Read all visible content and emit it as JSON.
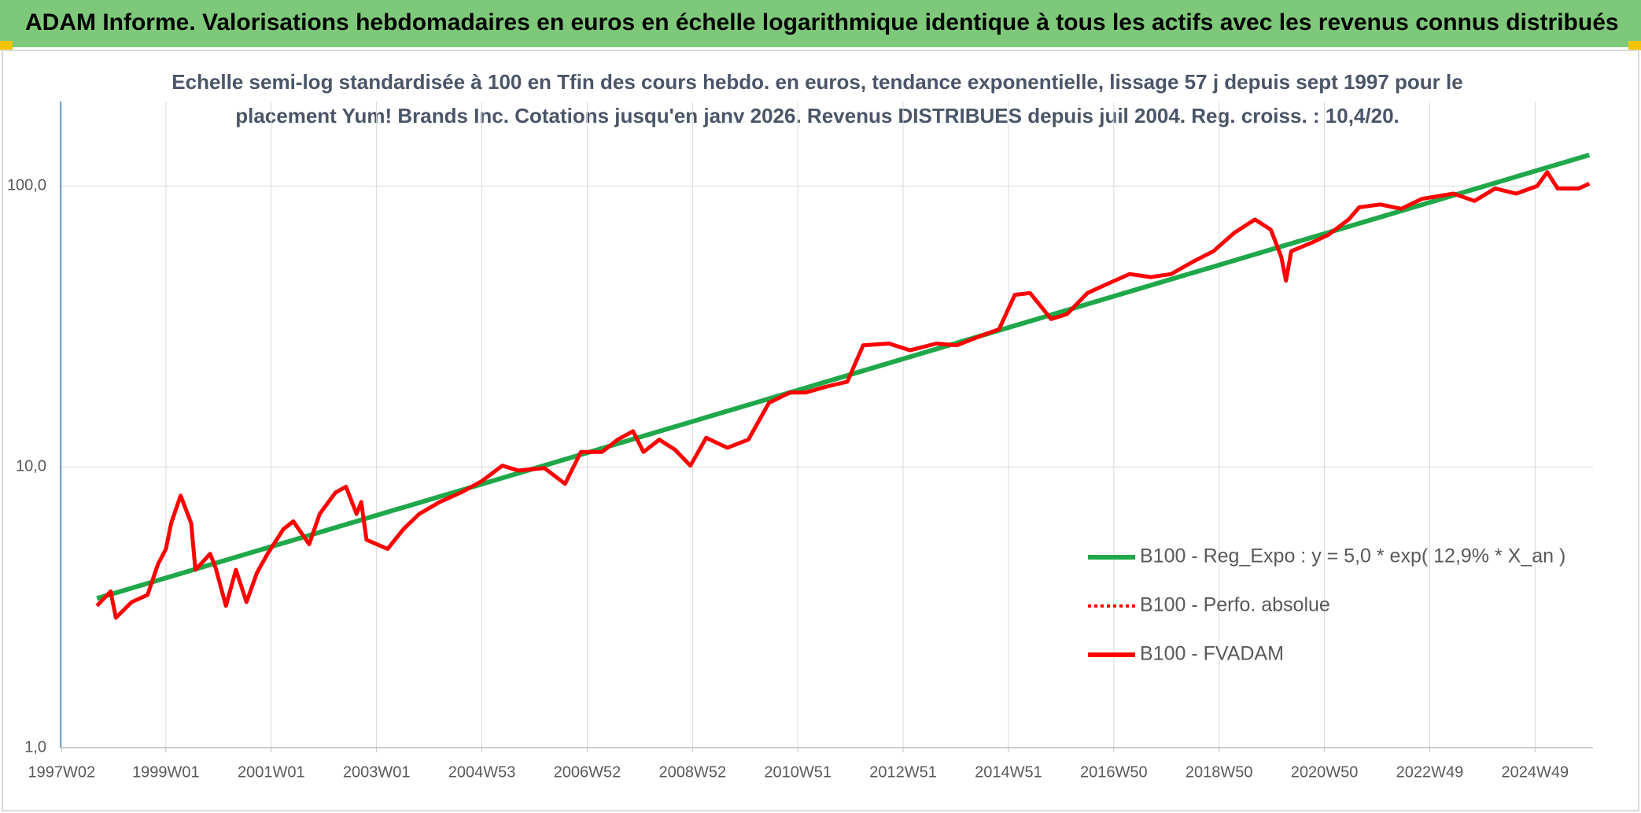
{
  "chart_data": {
    "type": "line",
    "title": "ADAM Informe. Valorisations hebdomadaires en euros en échelle logarithmique identique à tous les actifs avec les revenus connus distribués",
    "subtitle": [
      "Echelle semi-log standardisée à 100 en Tfin des cours hebdo. en euros, tendance exponentielle, lissage 57 j depuis sept 1997 pour le",
      "placement Yum! Brands Inc. Cotations jusqu'en janv 2026. Revenus DISTRIBUES depuis juil 2004. Reg. croiss. : 10,4/20."
    ],
    "log_scale": true,
    "grid": true,
    "legend": "right",
    "xlim": [
      1997.0,
      2026.1
    ],
    "xticks": [
      {
        "value": 1997.02,
        "label": "1997W02"
      },
      {
        "value": 1999.0,
        "label": "1999W01"
      },
      {
        "value": 2001.0,
        "label": "2001W01"
      },
      {
        "value": 2003.0,
        "label": "2003W01"
      },
      {
        "value": 2005.0,
        "label": "2004W53"
      },
      {
        "value": 2007.0,
        "label": "2006W52"
      },
      {
        "value": 2009.0,
        "label": "2008W52"
      },
      {
        "value": 2011.0,
        "label": "2010W51"
      },
      {
        "value": 2013.0,
        "label": "2012W51"
      },
      {
        "value": 2015.0,
        "label": "2014W51"
      },
      {
        "value": 2017.0,
        "label": "2016W50"
      },
      {
        "value": 2019.0,
        "label": "2018W50"
      },
      {
        "value": 2021.0,
        "label": "2020W50"
      },
      {
        "value": 2023.0,
        "label": "2022W49"
      },
      {
        "value": 2025.0,
        "label": "2024W49"
      }
    ],
    "ylim": [
      1,
      200
    ],
    "yticks": [
      {
        "value": 1,
        "label": "1,0"
      },
      {
        "value": 10,
        "label": "10,0"
      },
      {
        "value": 100,
        "label": "100,0"
      }
    ],
    "series": [
      {
        "name": "B100 - Reg_Expo : y = 5,0 * exp( 12,9% *  X_an )",
        "color": "#1fa84a",
        "style": "solid",
        "x": [
          1997.69,
          2026.03
        ],
        "values": [
          3.4,
          129
        ]
      },
      {
        "name": "B100 - Perfo. absolue",
        "color": "#ff0000",
        "style": "dotted",
        "x": [],
        "values": []
      },
      {
        "name": "B100 - FVADAM",
        "color": "#ff0000",
        "style": "solid",
        "x": [
          1997.69,
          1997.95,
          1998.05,
          1998.35,
          1998.65,
          1998.85,
          1999.0,
          1999.1,
          1999.28,
          1999.48,
          1999.56,
          1999.84,
          1999.94,
          2000.14,
          2000.33,
          2000.53,
          2000.73,
          2000.93,
          2001.23,
          2001.42,
          2001.72,
          2001.92,
          2002.22,
          2002.42,
          2002.62,
          2002.71,
          2002.81,
          2003.21,
          2003.51,
          2003.81,
          2004.2,
          2004.6,
          2005.0,
          2005.39,
          2005.69,
          2006.19,
          2006.58,
          2006.88,
          2007.28,
          2007.58,
          2007.87,
          2008.07,
          2008.37,
          2008.67,
          2008.96,
          2009.26,
          2009.66,
          2010.06,
          2010.45,
          2010.85,
          2011.15,
          2011.54,
          2011.94,
          2012.24,
          2012.73,
          2013.13,
          2013.63,
          2014.02,
          2014.42,
          2014.82,
          2015.12,
          2015.41,
          2015.81,
          2016.11,
          2016.5,
          2016.9,
          2017.3,
          2017.7,
          2018.09,
          2018.49,
          2018.89,
          2019.28,
          2019.68,
          2019.98,
          2020.18,
          2020.27,
          2020.37,
          2020.77,
          2021.07,
          2021.46,
          2021.66,
          2022.06,
          2022.46,
          2022.85,
          2023.45,
          2023.85,
          2024.24,
          2024.64,
          2025.04,
          2025.23,
          2025.43,
          2025.83,
          2026.03
        ],
        "values": [
          3.2,
          3.6,
          2.9,
          3.3,
          3.5,
          4.5,
          5.1,
          6.3,
          7.9,
          6.3,
          4.3,
          4.9,
          4.4,
          3.2,
          4.3,
          3.3,
          4.2,
          4.9,
          6.0,
          6.4,
          5.3,
          6.8,
          8.1,
          8.5,
          6.8,
          7.5,
          5.5,
          5.1,
          6.0,
          6.8,
          7.5,
          8.1,
          8.9,
          10.1,
          9.7,
          9.9,
          8.7,
          11.3,
          11.3,
          12.5,
          13.4,
          11.3,
          12.5,
          11.5,
          10.1,
          12.7,
          11.7,
          12.5,
          16.9,
          18.4,
          18.4,
          19.3,
          20.1,
          27.1,
          27.5,
          26.0,
          27.5,
          27.1,
          29.0,
          30.9,
          41,
          41.6,
          33.6,
          35,
          41.6,
          45,
          48.6,
          47.4,
          48.6,
          53.6,
          58.6,
          68,
          76,
          70,
          56,
          46,
          58.6,
          63,
          67,
          76,
          84,
          86,
          83,
          90,
          94,
          88.5,
          98,
          94,
          100,
          112,
          98,
          98,
          102
        ]
      }
    ]
  }
}
